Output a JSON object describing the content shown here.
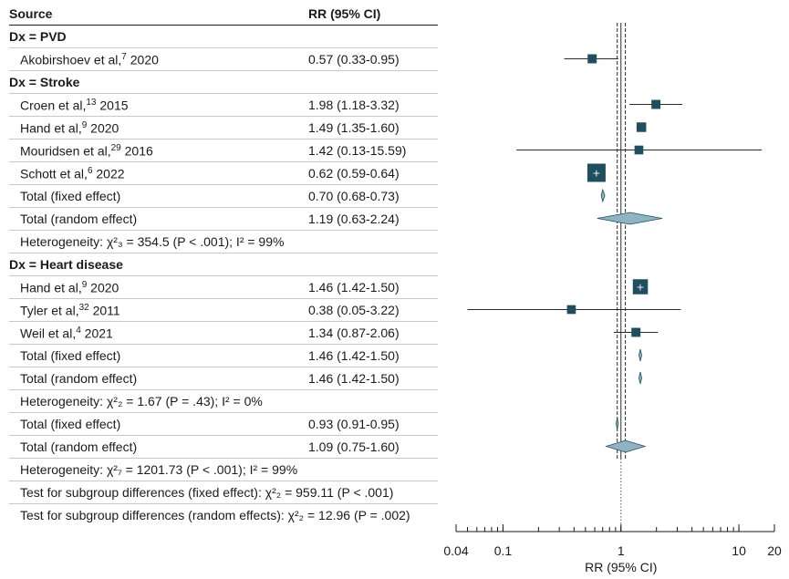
{
  "chart_data": {
    "type": "forest",
    "columns": {
      "source": "Source",
      "estimate": "RR (95% CI)"
    },
    "xlabel": "RR (95% CI)",
    "xscale": "log",
    "xlim": [
      0.04,
      20
    ],
    "xticks": [
      0.04,
      0.1,
      1,
      10,
      20
    ],
    "xtick_labels": [
      "0.04",
      "0.1",
      "1",
      "10",
      "20"
    ],
    "reference_line": 1,
    "fixed_effect_line": 0.93,
    "random_effect_line": 1.09,
    "rows": [
      {
        "kind": "group",
        "label": "Dx = PVD"
      },
      {
        "kind": "study",
        "author": "Akobirshoev et al,",
        "ref": "7",
        "year": "2020",
        "rr_text": "0.57 (0.33-0.95)",
        "est": 0.57,
        "lo": 0.33,
        "hi": 0.95,
        "weight": 0.28
      },
      {
        "kind": "group",
        "label": "Dx = Stroke"
      },
      {
        "kind": "study",
        "author": "Croen et al,",
        "ref": "13",
        "year": "2015",
        "rr_text": "1.98 (1.18-3.32)",
        "est": 1.98,
        "lo": 1.18,
        "hi": 3.32,
        "weight": 0.28
      },
      {
        "kind": "study",
        "author": "Hand et al,",
        "ref": "9",
        "year": "2020",
        "rr_text": "1.49 (1.35-1.60)",
        "est": 1.49,
        "lo": 1.35,
        "hi": 1.6,
        "weight": 0.32
      },
      {
        "kind": "study",
        "author": "Mouridsen et al,",
        "ref": "29",
        "year": "2016",
        "rr_text": "1.42 (0.13-15.59)",
        "est": 1.42,
        "lo": 0.13,
        "hi": 15.59,
        "weight": 0.26
      },
      {
        "kind": "study",
        "author": "Schott et al,",
        "ref": "6",
        "year": "2022",
        "rr_text": "0.62 (0.59-0.64)",
        "est": 0.62,
        "lo": 0.59,
        "hi": 0.64,
        "weight": 1.0,
        "mark": "+"
      },
      {
        "kind": "pooled",
        "label": "Total (fixed effect)",
        "rr_text": "0.70 (0.68-0.73)",
        "est": 0.7,
        "lo": 0.68,
        "hi": 0.73
      },
      {
        "kind": "pooled",
        "label": "Total (random effect)",
        "rr_text": "1.19 (0.63-2.24)",
        "est": 1.19,
        "lo": 0.63,
        "hi": 2.24
      },
      {
        "kind": "het",
        "label": "Heterogeneity: χ²₃ = 354.5 (P < .001); I² = 99%"
      },
      {
        "kind": "group",
        "label": "Dx = Heart disease"
      },
      {
        "kind": "study",
        "author": "Hand et al,",
        "ref": "9",
        "year": "2020",
        "rr_text": "1.46 (1.42-1.50)",
        "est": 1.46,
        "lo": 1.42,
        "hi": 1.5,
        "weight": 0.75,
        "mark": "+"
      },
      {
        "kind": "study",
        "author": "Tyler et al,",
        "ref": "32",
        "year": "2011",
        "rr_text": "0.38 (0.05-3.22)",
        "est": 0.38,
        "lo": 0.05,
        "hi": 3.22,
        "weight": 0.26
      },
      {
        "kind": "study",
        "author": "Weil et al,",
        "ref": "4",
        "year": "2021",
        "rr_text": "1.34 (0.87-2.06)",
        "est": 1.34,
        "lo": 0.87,
        "hi": 2.06,
        "weight": 0.28
      },
      {
        "kind": "pooled",
        "label": "Total (fixed effect)",
        "rr_text": "1.46 (1.42-1.50)",
        "est": 1.46,
        "lo": 1.42,
        "hi": 1.5
      },
      {
        "kind": "pooled",
        "label": "Total (random effect)",
        "rr_text": "1.46 (1.42-1.50)",
        "est": 1.46,
        "lo": 1.42,
        "hi": 1.5
      },
      {
        "kind": "het",
        "label": "Heterogeneity: χ²₂ = 1.67 (P = .43); I² = 0%"
      },
      {
        "kind": "pooled",
        "label": "Total (fixed effect)",
        "rr_text": "0.93 (0.91-0.95)",
        "est": 0.93,
        "lo": 0.91,
        "hi": 0.95
      },
      {
        "kind": "pooled",
        "label": "Total (random effect)",
        "rr_text": "1.09 (0.75-1.60)",
        "est": 1.09,
        "lo": 0.75,
        "hi": 1.6
      },
      {
        "kind": "het",
        "label": "Heterogeneity: χ²₇ = 1201.73 (P < .001); I² = 99%"
      },
      {
        "kind": "het",
        "label": "Test for subgroup differences (fixed effect): χ²₂ = 959.11 (P < .001)"
      },
      {
        "kind": "het",
        "label": "Test for subgroup differences (random effects): χ²₂ = 12.96 (P = .002)",
        "noline": true
      }
    ],
    "colors": {
      "marker": "#1f4e5f",
      "diamond": "#8fb3c0",
      "diamond_stroke": "#1f4e5f",
      "ci": "#2b2b2b"
    }
  }
}
